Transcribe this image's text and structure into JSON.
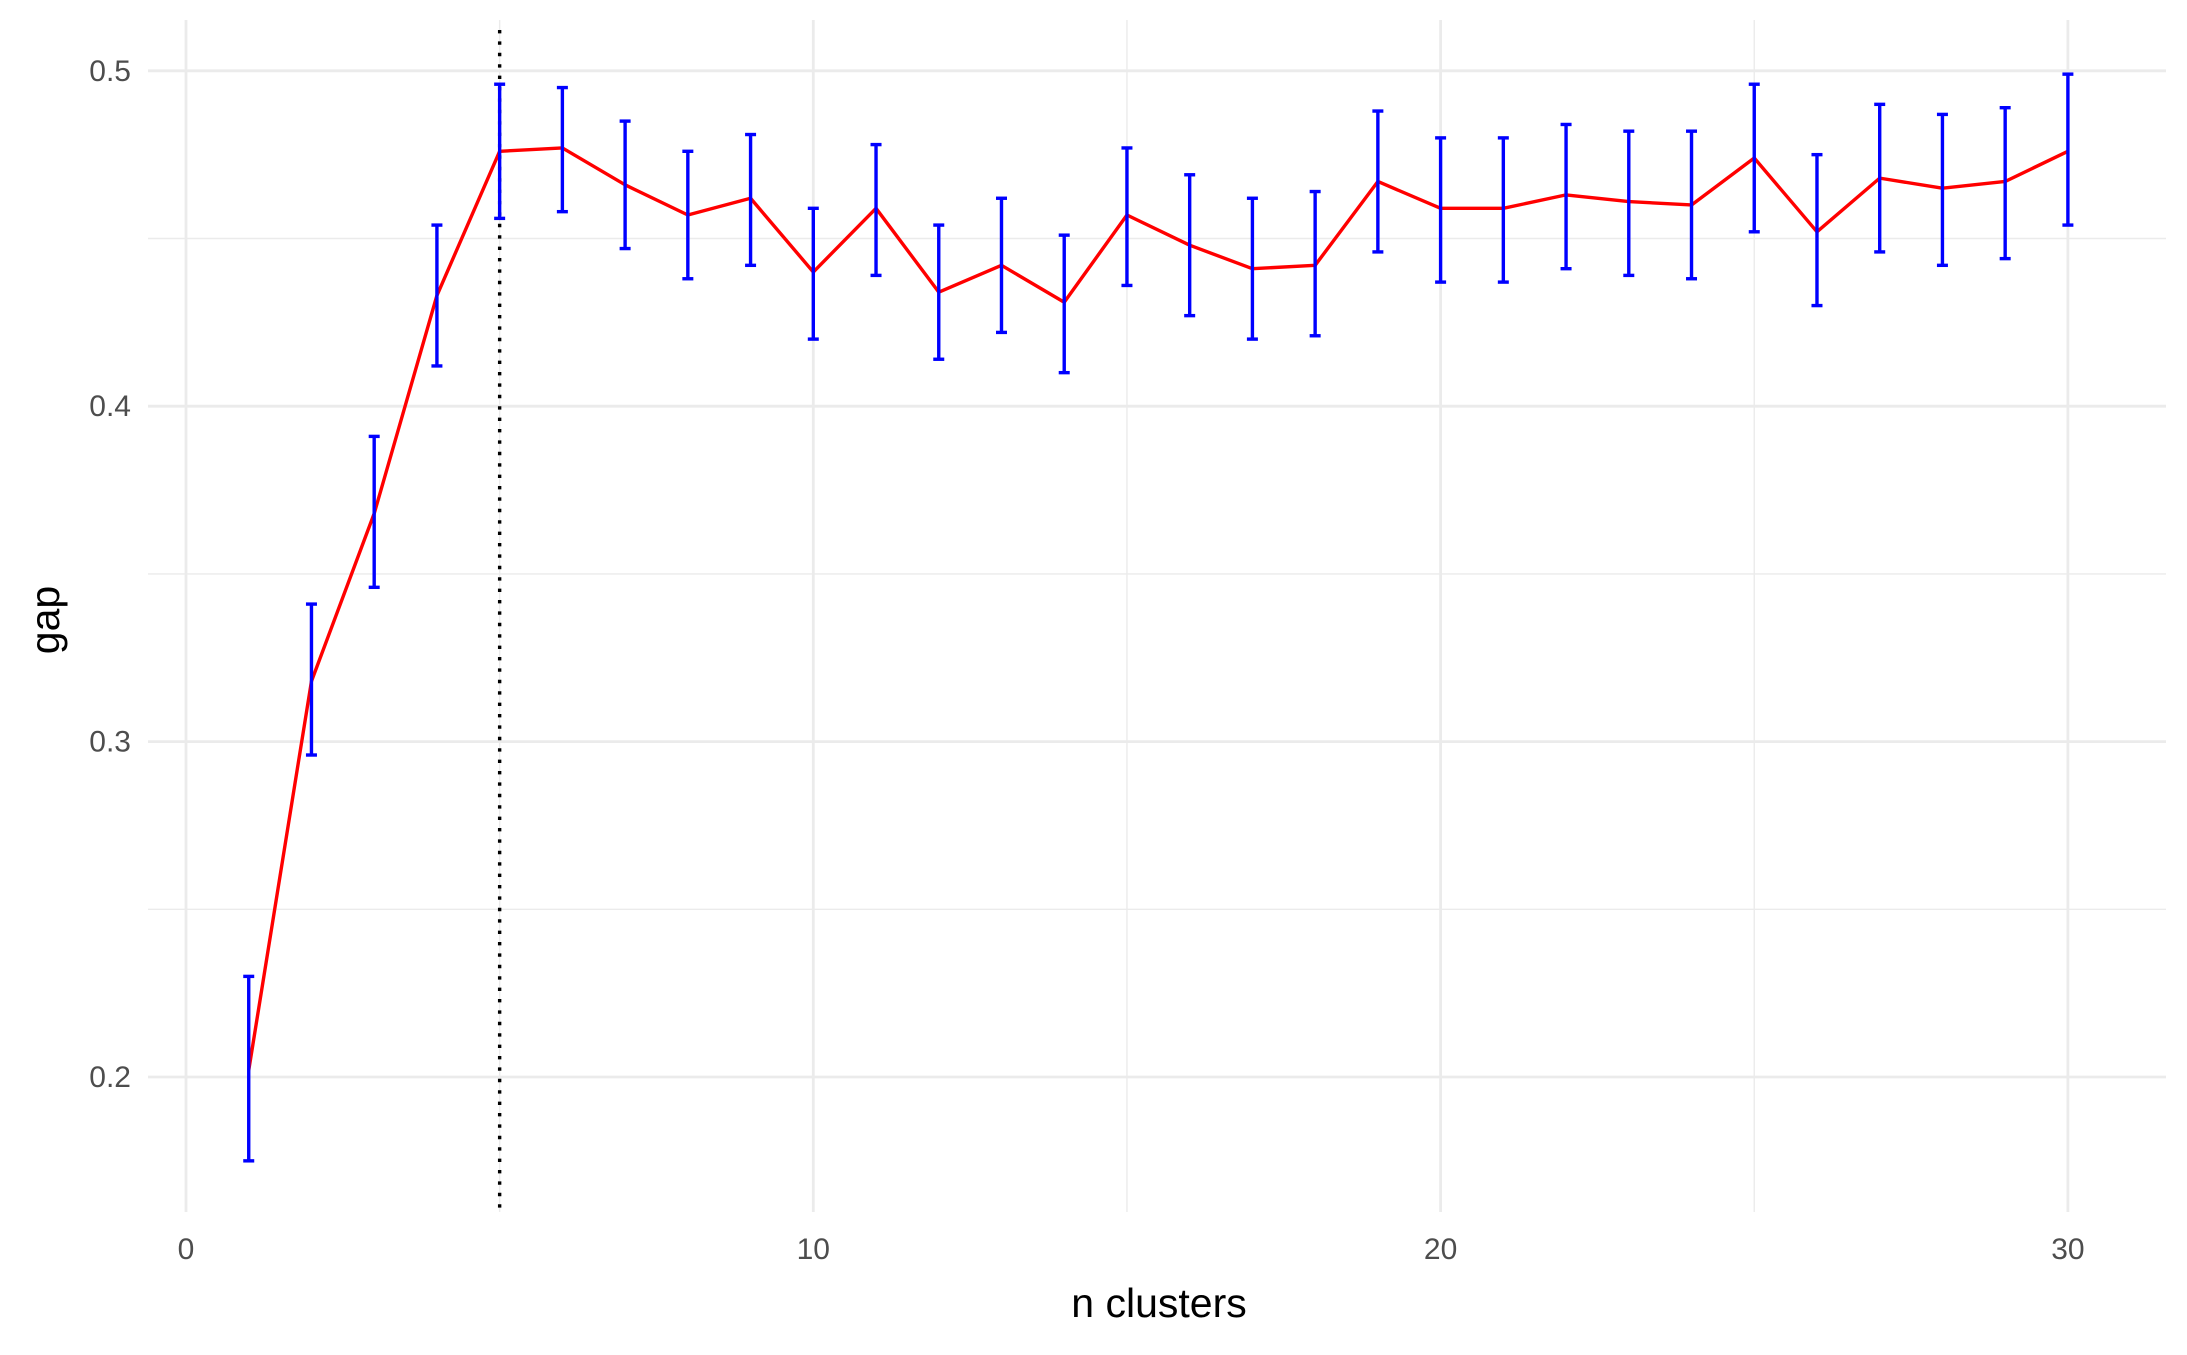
{
  "chart_data": {
    "type": "line",
    "title": "",
    "xlabel": "n clusters",
    "ylabel": "gap",
    "xlim": [
      -0.5,
      31.5
    ],
    "ylim": [
      0.163,
      0.515
    ],
    "x_ticks": [
      0,
      10,
      20,
      30
    ],
    "x_tick_labels": [
      "0",
      "10",
      "20",
      "30"
    ],
    "y_ticks": [
      0.2,
      0.3,
      0.4,
      0.5
    ],
    "y_tick_labels": [
      "0.2",
      "0.3",
      "0.4",
      "0.5"
    ],
    "x_minor_ticks": [
      5,
      15,
      25
    ],
    "y_minor_ticks": [
      0.25,
      0.35,
      0.45
    ],
    "grid": true,
    "vline": {
      "x": 5,
      "style": "dotted",
      "color": "#000000"
    },
    "series": [
      {
        "color": "#ff0000",
        "errorbar_color": "#0000ff",
        "x": [
          1,
          2,
          3,
          4,
          5,
          6,
          7,
          8,
          9,
          10,
          11,
          12,
          13,
          14,
          15,
          16,
          17,
          18,
          19,
          20,
          21,
          22,
          23,
          24,
          25,
          26,
          27,
          28,
          29,
          30
        ],
        "y": [
          0.202,
          0.318,
          0.368,
          0.433,
          0.476,
          0.477,
          0.466,
          0.457,
          0.462,
          0.44,
          0.459,
          0.434,
          0.442,
          0.431,
          0.457,
          0.448,
          0.441,
          0.442,
          0.467,
          0.459,
          0.459,
          0.463,
          0.461,
          0.46,
          0.474,
          0.452,
          0.468,
          0.465,
          0.467,
          0.476
        ],
        "ymin": [
          0.175,
          0.296,
          0.346,
          0.412,
          0.456,
          0.458,
          0.447,
          0.438,
          0.442,
          0.42,
          0.439,
          0.414,
          0.422,
          0.41,
          0.436,
          0.427,
          0.42,
          0.421,
          0.446,
          0.437,
          0.437,
          0.441,
          0.439,
          0.438,
          0.452,
          0.43,
          0.446,
          0.442,
          0.444,
          0.454
        ],
        "ymax": [
          0.23,
          0.341,
          0.391,
          0.454,
          0.496,
          0.495,
          0.485,
          0.476,
          0.481,
          0.459,
          0.478,
          0.454,
          0.462,
          0.451,
          0.477,
          0.469,
          0.462,
          0.464,
          0.488,
          0.48,
          0.48,
          0.484,
          0.482,
          0.482,
          0.496,
          0.475,
          0.49,
          0.487,
          0.489,
          0.499
        ]
      }
    ]
  }
}
